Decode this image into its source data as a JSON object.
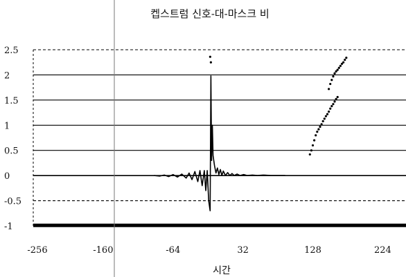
{
  "chart_data": {
    "type": "line",
    "title": "켑스트럼 신호-대-마스크 비",
    "xlabel": "시간",
    "ylabel": "",
    "xlim": [
      -256,
      256
    ],
    "ylim": [
      -1,
      2.5
    ],
    "x_tick_labels": [
      "-256",
      "-160",
      "-64",
      "32",
      "128",
      "224"
    ],
    "x_ticks": [
      -256,
      -160,
      -64,
      32,
      128,
      224
    ],
    "y_tick_labels": [
      "2.5",
      "2",
      "1.5",
      "1",
      "0.5",
      "0",
      "-0.5",
      "-1"
    ],
    "y_ticks": [
      2.5,
      2,
      1.5,
      1,
      0.5,
      0,
      -0.5,
      -1
    ],
    "grid": "horizontal",
    "colors": {
      "line": "#000000",
      "grid": "#000000",
      "dots": "#000000"
    },
    "series": [
      {
        "style": "solid",
        "points": [
          [
            -256,
            -0.99
          ],
          [
            -64,
            -0.99
          ],
          [
            32,
            -0.99
          ],
          [
            256,
            -0.99
          ]
        ]
      },
      {
        "style": "solid",
        "points": [
          [
            -90,
            0
          ],
          [
            -82,
            -0.01
          ],
          [
            -76,
            0.01
          ],
          [
            -70,
            -0.02
          ],
          [
            -64,
            0.02
          ],
          [
            -58,
            -0.03
          ],
          [
            -52,
            0.03
          ],
          [
            -46,
            -0.05
          ],
          [
            -42,
            0.05
          ],
          [
            -38,
            -0.08
          ],
          [
            -34,
            0.08
          ],
          [
            -30,
            -0.12
          ],
          [
            -27,
            0.1
          ],
          [
            -24,
            -0.2
          ],
          [
            -21,
            0.1
          ],
          [
            -19,
            -0.3
          ],
          [
            -17,
            0.1
          ],
          [
            -15,
            -0.5
          ],
          [
            -13,
            -0.7
          ],
          [
            -12,
            1.98
          ],
          [
            -11,
            0.3
          ],
          [
            -10,
            1.0
          ],
          [
            -9,
            0.4
          ],
          [
            -7,
            0.2
          ],
          [
            -5,
            0.05
          ],
          [
            -3,
            0.15
          ],
          [
            -1,
            0.02
          ],
          [
            1,
            0.12
          ],
          [
            3,
            0.0
          ],
          [
            5,
            0.09
          ],
          [
            8,
            0.0
          ],
          [
            11,
            0.06
          ],
          [
            14,
            0.0
          ],
          [
            17,
            0.04
          ],
          [
            20,
            0.0
          ],
          [
            24,
            0.03
          ],
          [
            28,
            0.0
          ],
          [
            33,
            0.02
          ],
          [
            38,
            0.0
          ],
          [
            45,
            0.01
          ],
          [
            52,
            0.0
          ],
          [
            60,
            0.01
          ],
          [
            70,
            0.0
          ],
          [
            90,
            0.0
          ]
        ]
      },
      {
        "style": "dots",
        "points": [
          [
            124,
            0.42
          ],
          [
            126,
            0.5
          ],
          [
            128,
            0.6
          ],
          [
            130,
            0.7
          ],
          [
            132,
            0.8
          ],
          [
            134,
            0.87
          ],
          [
            136,
            0.92
          ],
          [
            138,
            0.97
          ],
          [
            140,
            1.02
          ],
          [
            142,
            1.08
          ],
          [
            144,
            1.13
          ],
          [
            146,
            1.18
          ],
          [
            148,
            1.22
          ],
          [
            150,
            1.27
          ],
          [
            152,
            1.33
          ],
          [
            154,
            1.38
          ],
          [
            156,
            1.42
          ],
          [
            158,
            1.47
          ],
          [
            160,
            1.52
          ],
          [
            162,
            1.56
          ],
          [
            150,
            1.72
          ],
          [
            152,
            1.82
          ],
          [
            154,
            1.9
          ],
          [
            156,
            1.97
          ],
          [
            158,
            2.03
          ],
          [
            160,
            2.07
          ],
          [
            162,
            2.1
          ],
          [
            164,
            2.14
          ],
          [
            166,
            2.18
          ],
          [
            168,
            2.22
          ],
          [
            170,
            2.25
          ],
          [
            172,
            2.3
          ],
          [
            174,
            2.34
          ],
          [
            -12,
            2.25
          ],
          [
            -13,
            2.36
          ]
        ]
      }
    ]
  }
}
